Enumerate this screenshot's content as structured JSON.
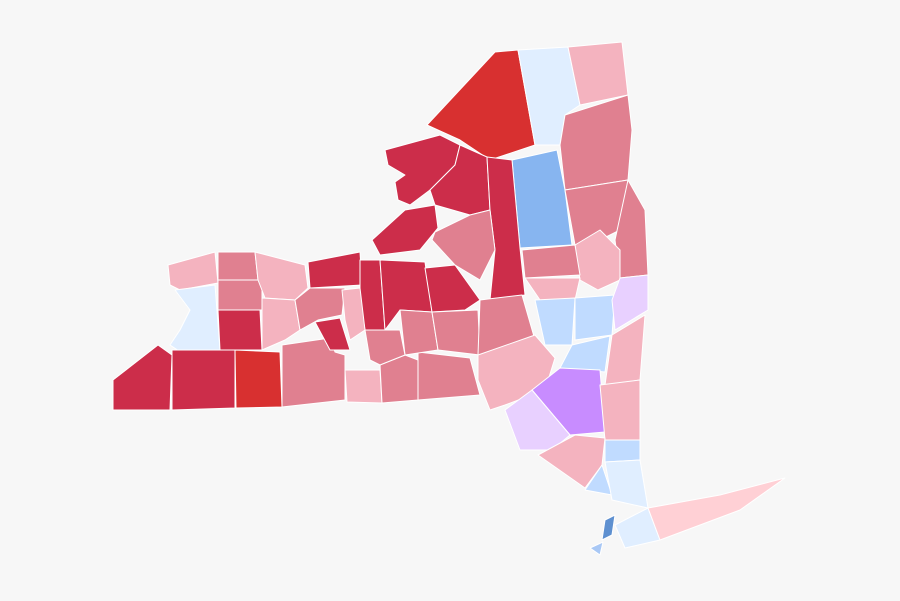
{
  "map": {
    "regions": [
      {
        "color": "#d83030"
      },
      {
        "color": "#e0eeff"
      },
      {
        "color": "#f4b3bf"
      },
      {
        "color": "#e08090"
      },
      {
        "color": "#87b5f0"
      },
      {
        "color": "#e08090"
      },
      {
        "color": "#e08090"
      },
      {
        "color": "#f4b3bf"
      },
      {
        "color": "#cc2d4a"
      },
      {
        "color": "#cc2d4a"
      },
      {
        "color": "#cc2d4a"
      },
      {
        "color": "#cc2d4a"
      },
      {
        "color": "#e08090"
      },
      {
        "color": "#f4b3bf"
      },
      {
        "color": "#e0eeff"
      },
      {
        "color": "#cc2d4a"
      },
      {
        "color": "#cc2d4a"
      },
      {
        "color": "#d83030"
      },
      {
        "color": "#e08090"
      },
      {
        "color": "#e08090"
      },
      {
        "color": "#cc2d4a"
      },
      {
        "color": "#f4b3bf"
      },
      {
        "color": "#f4b3bf"
      },
      {
        "color": "#cc2d4a"
      },
      {
        "color": "#e08090"
      },
      {
        "color": "#e08090"
      },
      {
        "color": "#f4b3bf"
      },
      {
        "color": "#e08090"
      },
      {
        "color": "#e08090"
      },
      {
        "color": "#cc2d4a"
      },
      {
        "color": "#cc2d4a"
      },
      {
        "color": "#cc2d4a"
      },
      {
        "color": "#e08090"
      },
      {
        "color": "#e08090"
      },
      {
        "color": "#f4b3bf"
      },
      {
        "color": "#cc2d4a"
      },
      {
        "color": "#e08090"
      },
      {
        "color": "#e08090"
      },
      {
        "color": "#f4b3bf"
      },
      {
        "color": "#e08090"
      },
      {
        "color": "#f4b3bf"
      },
      {
        "color": "#c0dbff"
      },
      {
        "color": "#c0dbff"
      },
      {
        "color": "#e8d0ff"
      },
      {
        "color": "#f4b3bf"
      },
      {
        "color": "#c0dbff"
      },
      {
        "color": "#c88cff"
      },
      {
        "color": "#e8d0ff"
      },
      {
        "color": "#f4b3bf"
      },
      {
        "color": "#f4b3bf"
      },
      {
        "color": "#c0dbff"
      },
      {
        "color": "#c0dbff"
      },
      {
        "color": "#e0eeff"
      },
      {
        "color": "#e0eeff"
      },
      {
        "color": "#ffd0d5"
      },
      {
        "color": "#5e90d0"
      },
      {
        "color": "#a9c8f5"
      }
    ]
  }
}
